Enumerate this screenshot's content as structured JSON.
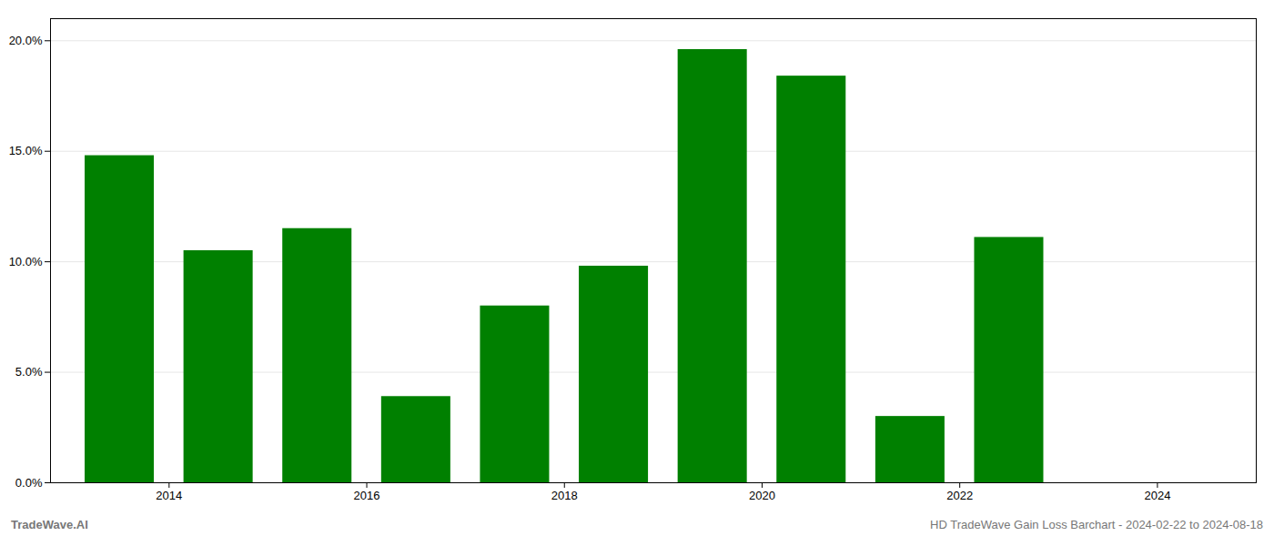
{
  "chart_data": {
    "type": "bar",
    "x": [
      2013.5,
      2014.5,
      2015.5,
      2016.5,
      2017.5,
      2018.5,
      2019.5,
      2020.5,
      2021.5,
      2022.5,
      2023.5
    ],
    "values": [
      0.148,
      0.105,
      0.115,
      0.039,
      0.08,
      0.098,
      0.196,
      0.184,
      0.03,
      0.111,
      0.0
    ],
    "color": "#008000",
    "xlim": [
      2012.8,
      2025.0
    ],
    "xticks": [
      2014,
      2016,
      2018,
      2020,
      2022,
      2024
    ],
    "ylim": [
      0,
      0.21
    ],
    "yticks": [
      {
        "value": 0.0,
        "label": "0.0%"
      },
      {
        "value": 0.05,
        "label": "5.0%"
      },
      {
        "value": 0.1,
        "label": "10.0%"
      },
      {
        "value": 0.15,
        "label": "15.0%"
      },
      {
        "value": 0.2,
        "label": "20.0%"
      }
    ],
    "grid": true,
    "annotations": [
      "TradeWave.AI",
      "HD TradeWave Gain Loss Barchart - 2024-02-22 to 2024-08-18"
    ]
  }
}
